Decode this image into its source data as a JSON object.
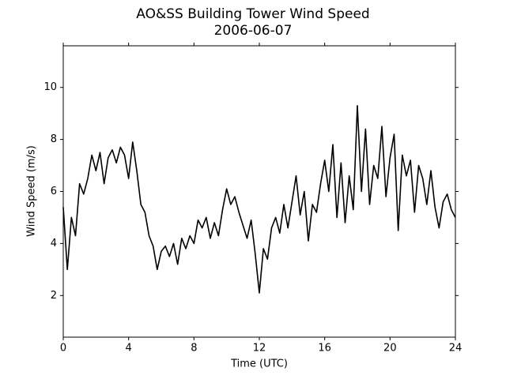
{
  "chart_data": {
    "type": "line",
    "title": "AO&SS Building Tower Wind Speed",
    "subtitle": "2006-06-07",
    "x_label": "Time (UTC)",
    "y_label": "Wind Speed (m/s)",
    "x": [
      0,
      0.25,
      0.5,
      0.75,
      1,
      1.25,
      1.5,
      1.75,
      2,
      2.25,
      2.5,
      2.75,
      3,
      3.25,
      3.5,
      3.75,
      4,
      4.25,
      4.5,
      4.75,
      5,
      5.25,
      5.5,
      5.75,
      6,
      6.25,
      6.5,
      6.75,
      7,
      7.25,
      7.5,
      7.75,
      8,
      8.25,
      8.5,
      8.75,
      9,
      9.25,
      9.5,
      9.75,
      10,
      10.25,
      10.5,
      10.75,
      11,
      11.25,
      11.5,
      11.75,
      12,
      12.25,
      12.5,
      12.75,
      13,
      13.25,
      13.5,
      13.75,
      14,
      14.25,
      14.5,
      14.75,
      15,
      15.25,
      15.5,
      15.75,
      16,
      16.25,
      16.5,
      16.75,
      17,
      17.25,
      17.5,
      17.75,
      18,
      18.25,
      18.5,
      18.75,
      19,
      19.25,
      19.5,
      19.75,
      20,
      20.25,
      20.5,
      20.75,
      21,
      21.25,
      21.5,
      21.75,
      22,
      22.25,
      22.5,
      22.75,
      23,
      23.25,
      23.5,
      23.75,
      24
    ],
    "series": [
      {
        "name": "Wind Speed",
        "color": "#000000",
        "values": [
          5.4,
          3.0,
          5.0,
          4.3,
          6.3,
          5.9,
          6.5,
          7.4,
          6.8,
          7.5,
          6.3,
          7.3,
          7.6,
          7.1,
          7.7,
          7.4,
          6.5,
          7.9,
          6.8,
          5.5,
          5.2,
          4.3,
          3.9,
          3.0,
          3.7,
          3.9,
          3.5,
          4.0,
          3.2,
          4.2,
          3.8,
          4.3,
          4.0,
          4.9,
          4.6,
          5.0,
          4.2,
          4.8,
          4.3,
          5.3,
          6.1,
          5.5,
          5.8,
          5.2,
          4.7,
          4.2,
          4.9,
          3.6,
          2.1,
          3.8,
          3.4,
          4.6,
          5.0,
          4.4,
          5.5,
          4.6,
          5.6,
          6.6,
          5.1,
          6.0,
          4.1,
          5.5,
          5.2,
          6.3,
          7.2,
          6.0,
          7.8,
          5.0,
          7.1,
          4.8,
          6.6,
          5.3,
          9.3,
          6.0,
          8.4,
          5.5,
          7.0,
          6.5,
          8.5,
          5.8,
          7.3,
          8.2,
          4.5,
          7.4,
          6.6,
          7.2,
          5.2,
          7.0,
          6.5,
          5.5,
          6.8,
          5.4,
          4.6,
          5.6,
          5.9,
          5.3,
          5.0
        ]
      }
    ],
    "xlim": [
      0,
      24
    ],
    "xticks": [
      0,
      4,
      8,
      12,
      16,
      20,
      24
    ],
    "ylim": [
      0.4,
      11.6
    ],
    "yticks": [
      2,
      4,
      6,
      8,
      10
    ],
    "grid": false
  }
}
